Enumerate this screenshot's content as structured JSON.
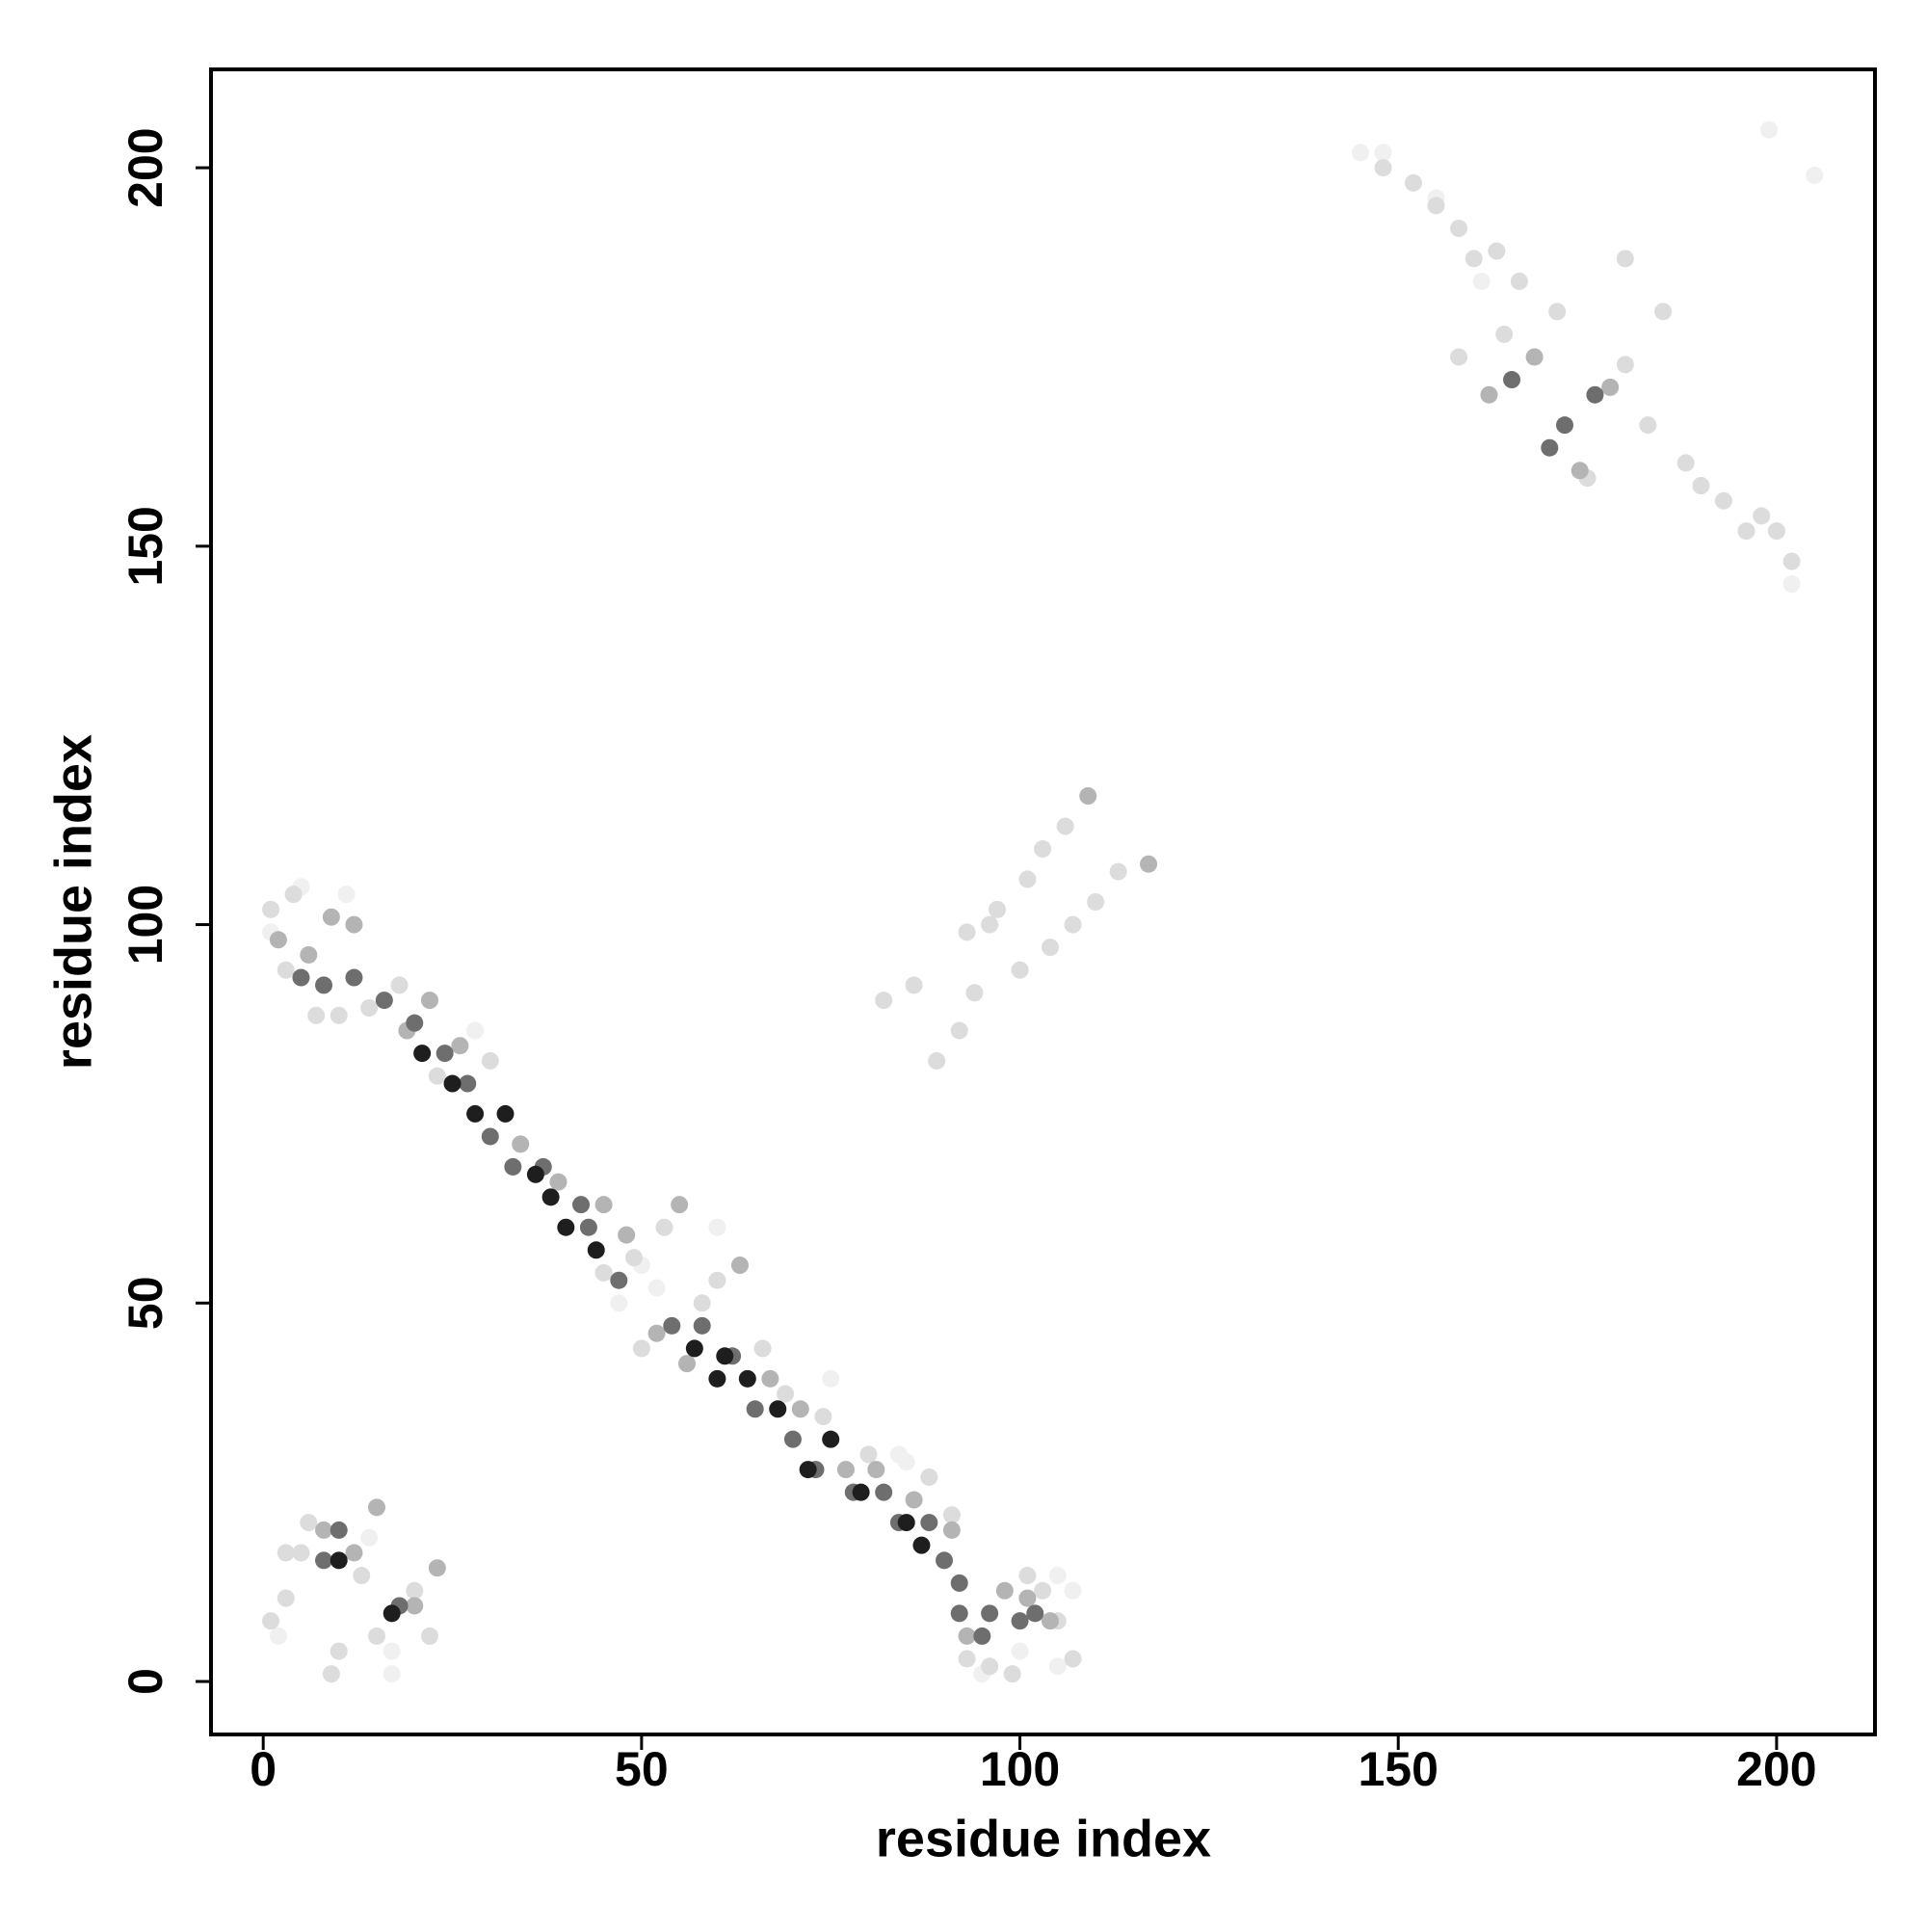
{
  "chart_data": {
    "type": "scatter",
    "x_label": "residue index",
    "y_label": "residue index",
    "xlim": [
      -6.9,
      213
    ],
    "ylim": [
      -7,
      213
    ],
    "xticks": [
      0,
      50,
      100,
      150,
      200
    ],
    "yticks": [
      0,
      50,
      100,
      150,
      200
    ],
    "series": [
      {
        "color": "#f0f0f0",
        "x": [
          145,
          148,
          155,
          161,
          199,
          205,
          202,
          2,
          17,
          17,
          14,
          1,
          5,
          11,
          28,
          47,
          50,
          52,
          84,
          95,
          100,
          105,
          107,
          105,
          60,
          75,
          85
        ],
        "y": [
          202,
          202,
          196,
          185,
          205,
          199,
          145,
          6,
          4,
          1,
          19,
          99,
          105,
          104,
          86,
          50,
          55,
          52,
          30,
          1,
          4,
          2,
          12,
          14,
          60,
          40,
          29
        ]
      },
      {
        "color": "#dcdcdc",
        "x": [
          1,
          3,
          9,
          6,
          13,
          15,
          20,
          22,
          10,
          1,
          4,
          3,
          7,
          10,
          14,
          18,
          23,
          30,
          45,
          49,
          53,
          50,
          58,
          60,
          66,
          69,
          74,
          80,
          88,
          91,
          93,
          96,
          99,
          101,
          103,
          105,
          107,
          93,
          97,
          101,
          103,
          106,
          100,
          104,
          107,
          110,
          113,
          82,
          86,
          89,
          92,
          158,
          164,
          171,
          175,
          180,
          183,
          148,
          152,
          155,
          158,
          160,
          163,
          166,
          188,
          190,
          193,
          196,
          198,
          200,
          202,
          185,
          180,
          96,
          94,
          5,
          3
        ],
        "y": [
          8,
          11,
          1,
          21,
          14,
          6,
          12,
          6,
          4,
          102,
          104,
          94,
          88,
          88,
          89,
          92,
          80,
          82,
          54,
          56,
          60,
          44,
          50,
          53,
          44,
          38,
          35,
          30,
          27,
          22,
          3,
          2,
          1,
          14,
          12,
          8,
          3,
          99,
          102,
          106,
          110,
          113,
          94,
          97,
          100,
          103,
          107,
          90,
          92,
          82,
          86,
          175,
          178,
          181,
          159,
          174,
          166,
          200,
          198,
          195,
          192,
          188,
          189,
          185,
          161,
          158,
          156,
          152,
          154,
          152,
          148,
          181,
          188,
          100,
          91,
          17,
          17
        ]
      },
      {
        "color": "#b4b4b4",
        "x": [
          55,
          63,
          109,
          117,
          15,
          23,
          20,
          19,
          22,
          26,
          34,
          39,
          45,
          48,
          52,
          56,
          67,
          71,
          77,
          81,
          86,
          91,
          93,
          98,
          8,
          12,
          2,
          9,
          12,
          6,
          162,
          168,
          174,
          178,
          101,
          104
        ],
        "y": [
          63,
          55,
          117,
          108,
          23,
          15,
          10,
          86,
          90,
          84,
          71,
          66,
          63,
          59,
          46,
          42,
          40,
          36,
          28,
          28,
          24,
          20,
          6,
          12,
          20,
          17,
          98,
          101,
          100,
          96,
          170,
          175,
          160,
          171,
          11,
          8
        ]
      },
      {
        "color": "#6e6e6e",
        "x": [
          20,
          24,
          27,
          30,
          33,
          37,
          42,
          43,
          47,
          54,
          58,
          62,
          65,
          70,
          73,
          78,
          82,
          84,
          88,
          90,
          92,
          95,
          8,
          10,
          18,
          12,
          8,
          5,
          16,
          165,
          170,
          172,
          176,
          92,
          96,
          100,
          102
        ],
        "y": [
          87,
          83,
          79,
          72,
          68,
          68,
          63,
          60,
          53,
          47,
          47,
          43,
          36,
          32,
          28,
          25,
          25,
          21,
          21,
          16,
          9,
          6,
          16,
          20,
          10,
          93,
          92,
          93,
          90,
          172,
          163,
          166,
          170,
          13,
          9,
          8,
          9
        ]
      },
      {
        "color": "#1e1e1e",
        "x": [
          32,
          36,
          40,
          44,
          57,
          60,
          64,
          68,
          75,
          79,
          85,
          25,
          28,
          21,
          38,
          10,
          17,
          61,
          72,
          87
        ],
        "y": [
          75,
          67,
          60,
          57,
          44,
          40,
          40,
          36,
          32,
          25,
          21,
          79,
          75,
          83,
          64,
          16,
          9,
          43,
          28,
          18
        ]
      }
    ]
  }
}
